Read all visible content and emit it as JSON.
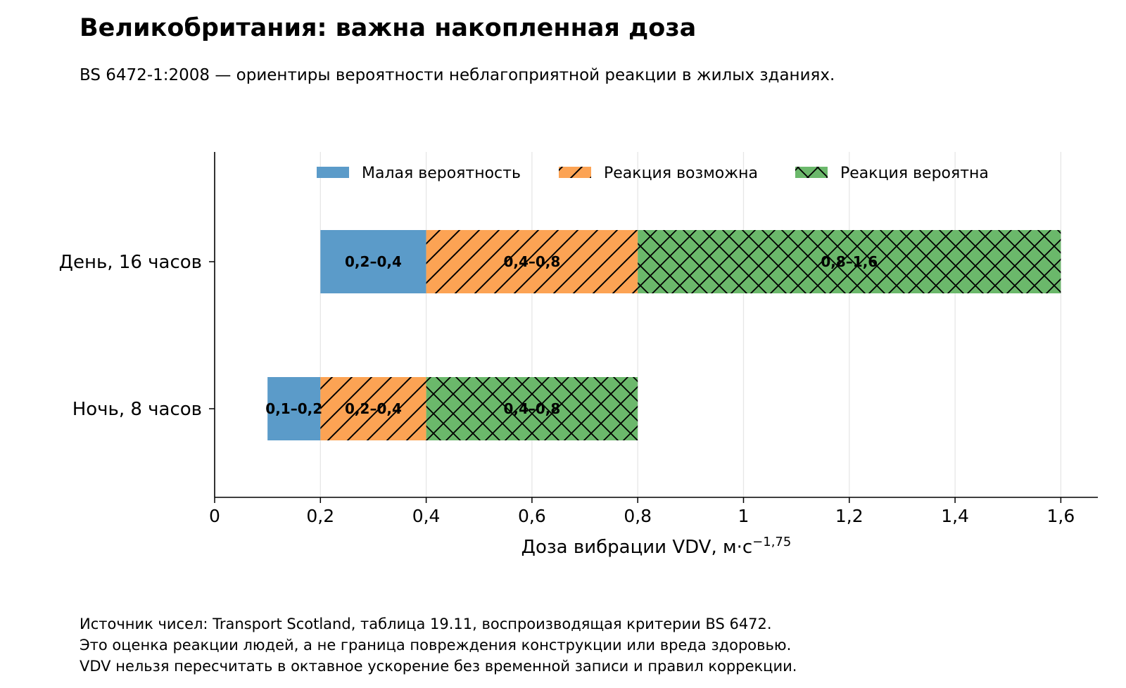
{
  "title": "Великобритания: важна накопленная доза",
  "subtitle": "BS 6472-1:2008 — ориентиры вероятности неблагоприятной реакции в жилых зданиях.",
  "notes": [
    "Источник чисел: Transport Scotland, таблица 19.11, воспроизводящая критерии BS 6472.",
    "Это оценка реакции людей, а не граница повреждения конструкции или вреда здоровью.",
    "VDV нельзя пересчитать в октавное ускорение без временной записи и правил коррекции."
  ],
  "chart_data": {
    "type": "bar",
    "orientation": "horizontal",
    "stacked": true,
    "categories": [
      "День, 16 часов",
      "Ночь, 8 часов"
    ],
    "series": [
      {
        "name": "Малая вероятность",
        "color": "#5b9bc9",
        "pattern": "none",
        "ranges": [
          [
            0.2,
            0.4
          ],
          [
            0.1,
            0.2
          ]
        ],
        "labels": [
          "0,2–0,4",
          "0,1–0,2"
        ]
      },
      {
        "name": "Реакция возможна",
        "color": "#fca354",
        "pattern": "diagonal",
        "ranges": [
          [
            0.4,
            0.8
          ],
          [
            0.2,
            0.4
          ]
        ],
        "labels": [
          "0,4–0,8",
          "0,2–0,4"
        ]
      },
      {
        "name": "Реакция вероятна",
        "color": "#6bb86b",
        "pattern": "crosshatch",
        "ranges": [
          [
            0.8,
            1.6
          ],
          [
            0.4,
            0.8
          ]
        ],
        "labels": [
          "0,8–1,6",
          "0,4–0,8"
        ]
      }
    ],
    "xlabel": "Доза вибрации VDV, м·с",
    "xlabel_exponent": "−1,75",
    "xlim": [
      0,
      1.67
    ],
    "xticks": [
      0,
      0.2,
      0.4,
      0.6,
      0.8,
      1,
      1.2,
      1.4,
      1.6
    ],
    "xtick_labels": [
      "0",
      "0,2",
      "0,4",
      "0,6",
      "0,8",
      "1",
      "1,2",
      "1,4",
      "1,6"
    ],
    "grid": "vertical",
    "legend_position": "top"
  }
}
